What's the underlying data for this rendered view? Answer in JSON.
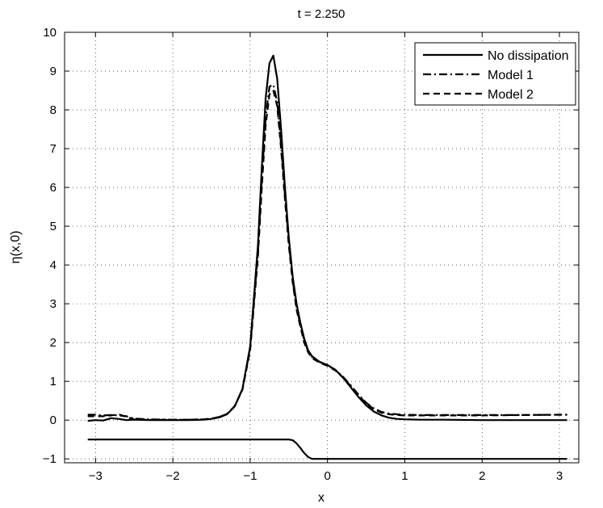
{
  "chart_data": {
    "type": "line",
    "title": "t = 2.250",
    "xlabel": "x",
    "ylabel": "η(x,0)",
    "xlim": [
      -3.4,
      3.25
    ],
    "ylim": [
      -1.1,
      10
    ],
    "xticks": [
      -3,
      -2,
      -1,
      0,
      1,
      2,
      3
    ],
    "yticks": [
      -1,
      0,
      1,
      2,
      3,
      4,
      5,
      6,
      7,
      8,
      9,
      10
    ],
    "xtick_labels": [
      "−3",
      "−2",
      "−1",
      "0",
      "1",
      "2",
      "3"
    ],
    "ytick_labels": [
      "−1",
      "0",
      "1",
      "2",
      "3",
      "4",
      "5",
      "6",
      "7",
      "8",
      "9",
      "10"
    ],
    "grid": true,
    "legend_position": "top-right",
    "series": [
      {
        "name": "No dissipation",
        "style": "solid",
        "color": "#000000",
        "x": [
          -3.1,
          -3.0,
          -2.9,
          -2.8,
          -2.7,
          -2.6,
          -2.5,
          -2.3,
          -2.0,
          -1.8,
          -1.6,
          -1.5,
          -1.4,
          -1.3,
          -1.2,
          -1.1,
          -1.0,
          -0.9,
          -0.85,
          -0.8,
          -0.75,
          -0.7,
          -0.65,
          -0.6,
          -0.55,
          -0.5,
          -0.45,
          -0.4,
          -0.35,
          -0.3,
          -0.25,
          -0.2,
          -0.1,
          0.0,
          0.1,
          0.2,
          0.3,
          0.4,
          0.5,
          0.6,
          0.7,
          0.8,
          0.9,
          1.0,
          1.2,
          1.5,
          2.0,
          2.5,
          3.0,
          3.1
        ],
        "y": [
          -0.02,
          0.0,
          -0.01,
          0.05,
          0.03,
          0.0,
          0.01,
          0.0,
          0.0,
          0.0,
          0.01,
          0.03,
          0.07,
          0.15,
          0.35,
          0.8,
          1.9,
          4.5,
          6.5,
          8.3,
          9.2,
          9.4,
          8.8,
          7.5,
          6.0,
          4.7,
          3.7,
          3.0,
          2.5,
          2.1,
          1.8,
          1.65,
          1.5,
          1.42,
          1.3,
          1.1,
          0.85,
          0.6,
          0.38,
          0.22,
          0.12,
          0.06,
          0.03,
          0.02,
          0.01,
          0.01,
          0.0,
          0.0,
          0.0,
          0.0
        ]
      },
      {
        "name": "Model 1",
        "style": "dashdot",
        "color": "#000000",
        "x": [
          -3.1,
          -3.0,
          -2.9,
          -2.8,
          -2.7,
          -2.6,
          -2.5,
          -2.3,
          -2.0,
          -1.8,
          -1.6,
          -1.5,
          -1.4,
          -1.3,
          -1.2,
          -1.1,
          -1.0,
          -0.9,
          -0.85,
          -0.8,
          -0.75,
          -0.7,
          -0.65,
          -0.6,
          -0.55,
          -0.5,
          -0.45,
          -0.4,
          -0.35,
          -0.3,
          -0.25,
          -0.2,
          -0.1,
          0.0,
          0.1,
          0.2,
          0.3,
          0.4,
          0.5,
          0.6,
          0.7,
          0.8,
          0.9,
          1.0,
          1.2,
          1.5,
          2.0,
          2.5,
          3.0,
          3.1
        ],
        "y": [
          0.14,
          0.14,
          0.12,
          0.13,
          0.12,
          0.1,
          0.04,
          0.02,
          0.01,
          0.01,
          0.02,
          0.04,
          0.08,
          0.16,
          0.36,
          0.8,
          1.85,
          4.3,
          6.2,
          7.8,
          8.6,
          8.65,
          8.2,
          7.1,
          5.8,
          4.6,
          3.6,
          2.9,
          2.45,
          2.05,
          1.78,
          1.63,
          1.5,
          1.42,
          1.3,
          1.12,
          0.9,
          0.66,
          0.45,
          0.3,
          0.21,
          0.17,
          0.15,
          0.14,
          0.13,
          0.13,
          0.13,
          0.13,
          0.14,
          0.14
        ]
      },
      {
        "name": "Model 2",
        "style": "dashed",
        "color": "#000000",
        "x": [
          -3.1,
          -3.0,
          -2.9,
          -2.8,
          -2.7,
          -2.6,
          -2.5,
          -2.3,
          -2.0,
          -1.8,
          -1.6,
          -1.5,
          -1.4,
          -1.3,
          -1.2,
          -1.1,
          -1.0,
          -0.9,
          -0.85,
          -0.8,
          -0.75,
          -0.7,
          -0.65,
          -0.6,
          -0.55,
          -0.5,
          -0.45,
          -0.4,
          -0.35,
          -0.3,
          -0.25,
          -0.2,
          -0.1,
          0.0,
          0.1,
          0.2,
          0.3,
          0.4,
          0.5,
          0.6,
          0.7,
          0.8,
          0.9,
          1.0,
          1.2,
          1.5,
          2.0,
          2.5,
          3.0,
          3.1
        ],
        "y": [
          0.1,
          0.1,
          0.1,
          0.12,
          0.15,
          0.08,
          0.02,
          0.01,
          0.01,
          0.01,
          0.02,
          0.04,
          0.08,
          0.16,
          0.36,
          0.78,
          1.8,
          4.2,
          6.0,
          7.6,
          8.4,
          8.5,
          8.1,
          7.0,
          5.7,
          4.5,
          3.55,
          2.85,
          2.4,
          2.0,
          1.75,
          1.6,
          1.48,
          1.4,
          1.28,
          1.1,
          0.88,
          0.64,
          0.43,
          0.28,
          0.19,
          0.15,
          0.13,
          0.12,
          0.12,
          0.12,
          0.12,
          0.13,
          0.14,
          0.14
        ]
      },
      {
        "name": "",
        "style": "solid",
        "color": "#000000",
        "x": [
          -3.1,
          -0.5,
          -0.45,
          -0.4,
          -0.35,
          -0.3,
          -0.25,
          -0.2,
          0.0,
          1.0,
          2.0,
          3.1
        ],
        "y": [
          -0.5,
          -0.5,
          -0.52,
          -0.6,
          -0.72,
          -0.85,
          -0.95,
          -1.0,
          -1.0,
          -1.0,
          -1.0,
          -1.0
        ]
      }
    ]
  }
}
